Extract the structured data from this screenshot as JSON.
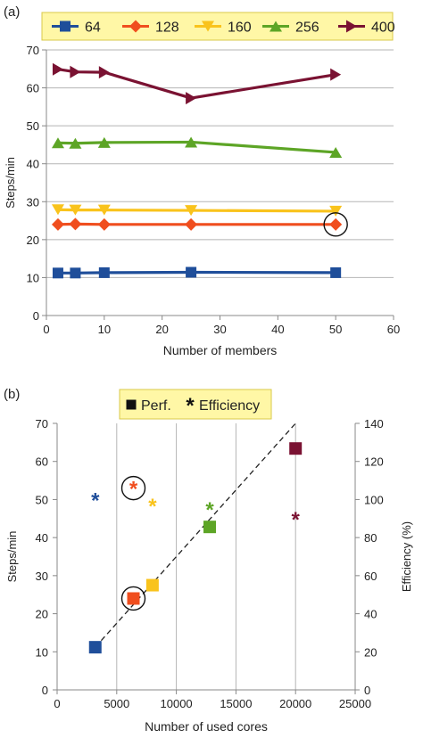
{
  "panel_labels": [
    "(a)",
    "(b)"
  ],
  "chart_data": [
    {
      "type": "line",
      "panel": "(a)",
      "title": "",
      "xlabel": "Number of members",
      "ylabel": "Steps/min",
      "xlim": [
        0,
        60
      ],
      "ylim": [
        0,
        70
      ],
      "xticks": [
        0,
        10,
        20,
        30,
        40,
        50,
        60
      ],
      "yticks": [
        0,
        10,
        20,
        30,
        40,
        50,
        60,
        70
      ],
      "grid": "horizontal",
      "legend_position": "top",
      "x": [
        2,
        5,
        10,
        25,
        50
      ],
      "series": [
        {
          "name": "64",
          "color": "#1f4e9a",
          "marker": "square",
          "values": [
            11.2,
            11.2,
            11.3,
            11.4,
            11.3
          ]
        },
        {
          "name": "128",
          "color": "#f04e1e",
          "marker": "diamond",
          "values": [
            24.0,
            24.1,
            24.0,
            24.0,
            24.0
          ]
        },
        {
          "name": "160",
          "color": "#f9c31c",
          "marker": "triangle-down",
          "values": [
            27.9,
            27.8,
            27.8,
            27.7,
            27.5
          ]
        },
        {
          "name": "256",
          "color": "#5da526",
          "marker": "triangle-up",
          "values": [
            45.5,
            45.4,
            45.6,
            45.7,
            43.0
          ]
        },
        {
          "name": "400",
          "color": "#7a1232",
          "marker": "triangle-right",
          "values": [
            64.9,
            64.2,
            64.1,
            57.3,
            63.5
          ]
        }
      ],
      "annotations": [
        {
          "type": "circle",
          "x": 50,
          "y": 24.0
        }
      ]
    },
    {
      "type": "scatter",
      "panel": "(b)",
      "title": "",
      "xlabel": "Number of used cores",
      "ylabel": "Steps/min",
      "y2label": "Efficiency (%)",
      "xlim": [
        0,
        25000
      ],
      "ylim": [
        0,
        70
      ],
      "y2lim": [
        0,
        140
      ],
      "xticks": [
        0,
        5000,
        10000,
        15000,
        20000,
        25000
      ],
      "yticks": [
        0,
        10,
        20,
        30,
        40,
        50,
        60,
        70
      ],
      "y2ticks": [
        0,
        20,
        40,
        60,
        80,
        100,
        120,
        140
      ],
      "grid": "vertical",
      "legend_position": "top",
      "legend": [
        {
          "label": "Perf.",
          "marker": "square"
        },
        {
          "label": "Efficiency",
          "marker": "asterisk"
        }
      ],
      "perf": [
        {
          "x": 3200,
          "y": 11.2,
          "color": "#1f4e9a"
        },
        {
          "x": 6400,
          "y": 24.0,
          "color": "#f04e1e"
        },
        {
          "x": 8000,
          "y": 27.5,
          "color": "#f9c31c"
        },
        {
          "x": 12800,
          "y": 42.8,
          "color": "#5da526"
        },
        {
          "x": 20000,
          "y": 63.4,
          "color": "#7a1232"
        }
      ],
      "efficiency": [
        {
          "x": 3200,
          "y": 100,
          "color": "#1f4e9a"
        },
        {
          "x": 6400,
          "y": 106,
          "color": "#f04e1e"
        },
        {
          "x": 8000,
          "y": 97,
          "color": "#f9c31c"
        },
        {
          "x": 12800,
          "y": 95,
          "color": "#5da526"
        },
        {
          "x": 20000,
          "y": 90,
          "color": "#7a1232"
        }
      ],
      "trendline": {
        "style": "dashed",
        "from": {
          "x": 3200,
          "y": 11.2
        },
        "to": {
          "x": 20000,
          "y": 70
        }
      },
      "annotations": [
        {
          "type": "circle",
          "series": "perf",
          "x": 6400,
          "y": 24.0
        },
        {
          "type": "circle",
          "series": "efficiency",
          "x": 6400,
          "y": 106
        }
      ]
    }
  ]
}
